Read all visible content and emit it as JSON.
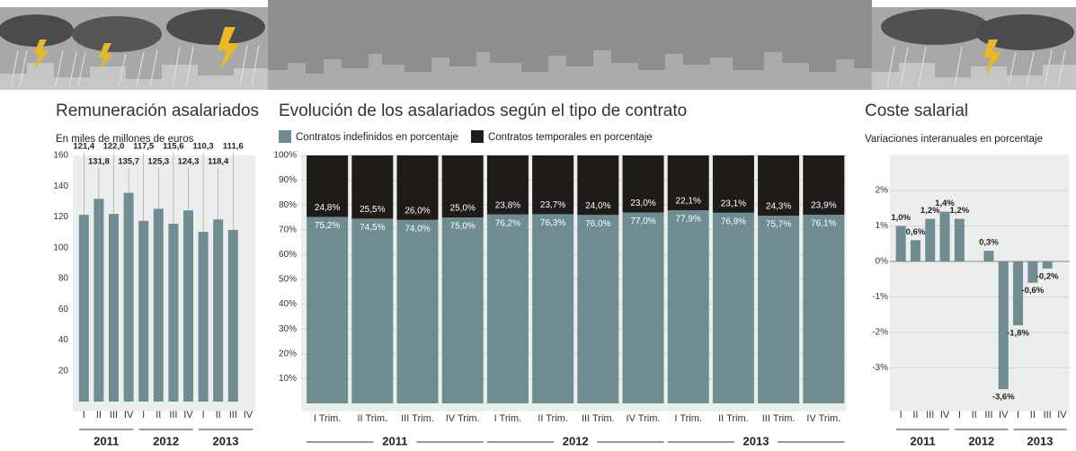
{
  "chart_data": [
    {
      "type": "bar",
      "title": "Remuneración asalariados",
      "subtitle": "En miles de millones de euros",
      "categories": [
        "I",
        "II",
        "III",
        "IV",
        "I",
        "II",
        "III",
        "IV",
        "I",
        "II",
        "III",
        "IV"
      ],
      "years": [
        "2011",
        "2012",
        "2013"
      ],
      "values": [
        121.4,
        131.8,
        122.0,
        135.7,
        117.5,
        125.3,
        115.6,
        124.3,
        110.3,
        118.4,
        111.6,
        null
      ],
      "value_labels": [
        "121,4",
        "131,8",
        "122,0",
        "135,7",
        "117,5",
        "125,3",
        "115,6",
        "124,3",
        "110,3",
        "118,4",
        "111,6",
        null
      ],
      "color": "#6f8c93",
      "ylim": [
        0,
        160
      ],
      "yticks": [
        20,
        40,
        60,
        80,
        100,
        120,
        140,
        160
      ],
      "grid": false
    },
    {
      "type": "stacked_bar",
      "title": "Evolución de los asalariados según el tipo de contrato",
      "categories": [
        "I Trim.",
        "II Trim.",
        "III Trim.",
        "IV Trim.",
        "I Trim.",
        "II Trim.",
        "III Trim.",
        "IV Trim.",
        "I Trim.",
        "II Trim.",
        "III Trim.",
        "IV Trim."
      ],
      "years": [
        "2011",
        "2012",
        "2013"
      ],
      "series": [
        {
          "name": "Contratos indefinidos en porcentaje",
          "color": "#6f8c93",
          "values": [
            75.2,
            74.5,
            74.0,
            75.0,
            76.2,
            76.3,
            76.0,
            77.0,
            77.9,
            76.9,
            75.7,
            76.1
          ],
          "value_labels": [
            "75,2%",
            "74,5%",
            "74,0%",
            "75,0%",
            "76,2%",
            "76,3%",
            "76,0%",
            "77,0%",
            "77,9%",
            "76,9%",
            "75,7%",
            "76,1%"
          ]
        },
        {
          "name": "Contratos temporales en porcentaje",
          "color": "#1e1b19",
          "values": [
            24.8,
            25.5,
            26.0,
            25.0,
            23.8,
            23.7,
            24.0,
            23.0,
            22.1,
            23.1,
            24.3,
            23.9
          ],
          "value_labels": [
            "24,8%",
            "25,5%",
            "26,0%",
            "25,0%",
            "23,8%",
            "23,7%",
            "24,0%",
            "23,0%",
            "22,1%",
            "23,1%",
            "24,3%",
            "23,9%"
          ]
        }
      ],
      "ylim": [
        0,
        100
      ],
      "yticks": [
        {
          "value": 10,
          "label": "10%"
        },
        {
          "value": 20,
          "label": "20%"
        },
        {
          "value": 30,
          "label": "30%"
        },
        {
          "value": 40,
          "label": "40%"
        },
        {
          "value": 50,
          "label": "50%"
        },
        {
          "value": 60,
          "label": "60%"
        },
        {
          "value": 70,
          "label": "70%"
        },
        {
          "value": 80,
          "label": "80%"
        },
        {
          "value": 90,
          "label": "90%"
        },
        {
          "value": 100,
          "label": "100%"
        }
      ],
      "grid": true
    },
    {
      "type": "bar",
      "title": "Coste salarial",
      "subtitle": "Variaciones interanuales en porcentaje",
      "categories": [
        "I",
        "II",
        "III",
        "IV",
        "I",
        "II",
        "III",
        "IV",
        "I",
        "II",
        "III",
        "IV"
      ],
      "years": [
        "2011",
        "2012",
        "2013"
      ],
      "values": [
        1.0,
        0.6,
        1.2,
        1.4,
        1.2,
        null,
        0.3,
        -3.6,
        -1.8,
        -0.6,
        -0.2,
        null
      ],
      "value_labels": [
        "1,0%",
        "0,6%",
        "1,2%",
        "1,4%",
        "1,2%",
        null,
        "0,3%",
        "-3,6%",
        "-1,8%",
        "-0,6%",
        "-0,2%",
        null
      ],
      "color": "#6f8c93",
      "ylim": [
        -4,
        3
      ],
      "yticks": [
        {
          "value": -3,
          "label": "-3%"
        },
        {
          "value": -2,
          "label": "-2%"
        },
        {
          "value": -1,
          "label": "-1%"
        },
        {
          "value": 0,
          "label": "0%"
        },
        {
          "value": 1,
          "label": "1%"
        },
        {
          "value": 2,
          "label": "2%"
        }
      ],
      "grid": true
    }
  ]
}
